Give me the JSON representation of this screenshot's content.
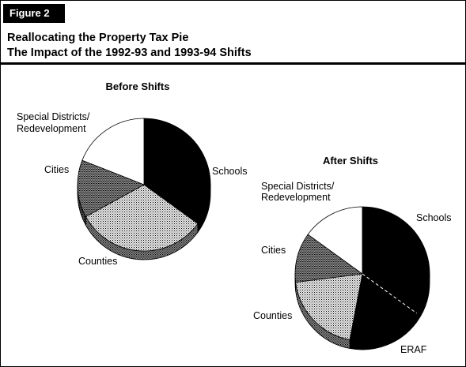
{
  "figure_label": "Figure 2",
  "title_line1": "Reallocating the Property Tax Pie",
  "title_line2": "The Impact of the 1992-93 and 1993-94 Shifts",
  "chart_data": [
    {
      "type": "pie",
      "title": "Before Shifts",
      "slices": [
        {
          "name": "Schools",
          "value": 35,
          "color": "#000000",
          "pattern": "solid"
        },
        {
          "name": "Counties",
          "value": 32,
          "color": "#bdbdbd",
          "pattern": "light-dots"
        },
        {
          "name": "Cities",
          "value": 14,
          "color": "#7a7a7a",
          "pattern": "dark-dots"
        },
        {
          "name": "Special Districts/ Redevelopment",
          "value": 19,
          "color": "#ffffff",
          "pattern": "white"
        }
      ]
    },
    {
      "type": "pie",
      "title": "After Shifts",
      "slices": [
        {
          "name": "Schools",
          "value": 35,
          "color": "#000000",
          "pattern": "solid"
        },
        {
          "name": "ERAF",
          "value": 18,
          "color": "#000000",
          "pattern": "solid"
        },
        {
          "name": "Counties",
          "value": 20,
          "color": "#bdbdbd",
          "pattern": "light-dots"
        },
        {
          "name": "Cities",
          "value": 12,
          "color": "#7a7a7a",
          "pattern": "dark-dots"
        },
        {
          "name": "Special Districts/ Redevelopment",
          "value": 15,
          "color": "#ffffff",
          "pattern": "white"
        }
      ]
    }
  ]
}
